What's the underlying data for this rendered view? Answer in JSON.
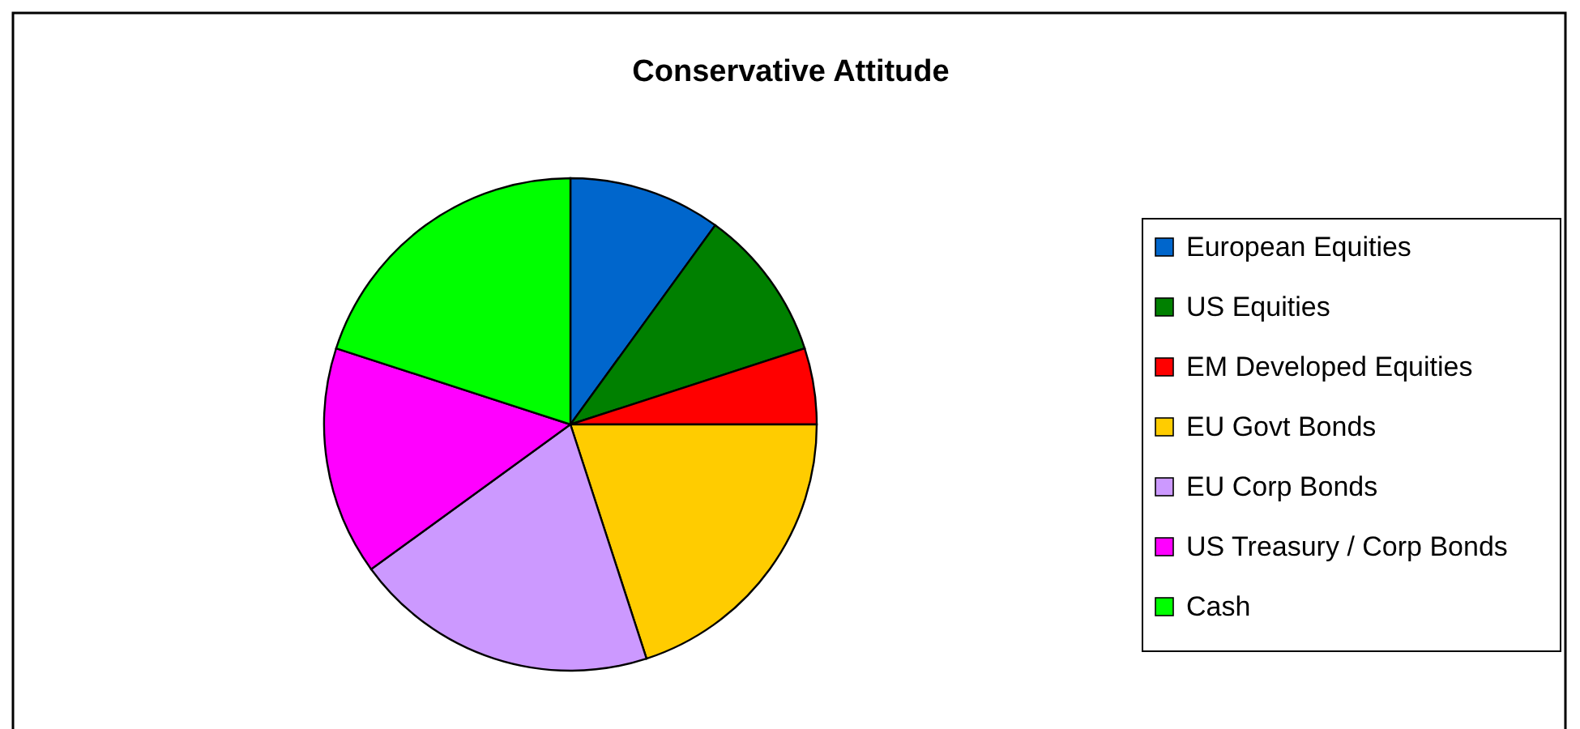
{
  "chart_data": {
    "type": "pie",
    "title": "Conservative Attitude",
    "categories": [
      "European Equities",
      "US Equities",
      "EM Developed Equities",
      "EU Govt Bonds",
      "EU Corp Bonds",
      "US Treasury / Corp Bonds",
      "Cash"
    ],
    "values": [
      10,
      10,
      5,
      20,
      20,
      15,
      20
    ],
    "colors": [
      "#0066cc",
      "#008000",
      "#ff0000",
      "#ffcc00",
      "#cc99ff",
      "#ff00ff",
      "#00ff00"
    ],
    "legend": "right"
  }
}
